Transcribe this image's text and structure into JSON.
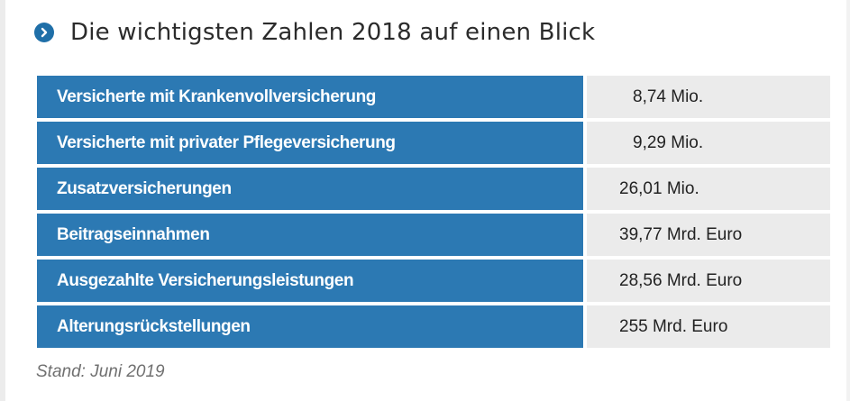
{
  "heading": {
    "icon": "chevron-right-circle-icon",
    "title": "Die wichtigsten Zahlen 2018 auf einen Blick"
  },
  "colors": {
    "label_bg": "#2c79b3",
    "value_bg": "#ebebeb",
    "icon_bg": "#1f6fa8"
  },
  "rows": [
    {
      "label": "Versicherte mit Krankenvollversicherung",
      "value": "8,74 Mio."
    },
    {
      "label": "Versicherte mit privater Pflegeversicherung",
      "value": "9,29 Mio."
    },
    {
      "label": "Zusatzversicherungen",
      "value": "26,01 Mio."
    },
    {
      "label": "Beitragseinnahmen",
      "value": "39,77 Mrd. Euro"
    },
    {
      "label": "Ausgezahlte Versicherungsleistungen",
      "value": "28,56 Mrd. Euro"
    },
    {
      "label": "Alterungsrückstellungen",
      "value": "255 Mrd. Euro"
    }
  ],
  "footnote": "Stand: Juni 2019"
}
